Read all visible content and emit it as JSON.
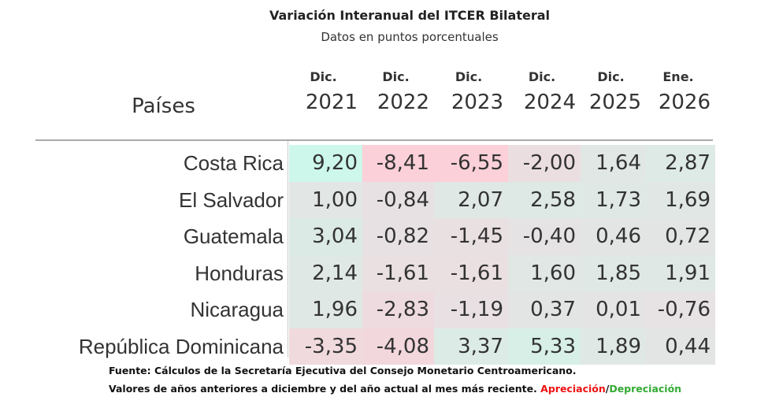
{
  "title": "Variación Interanual del ITCER Bilateral",
  "subtitle": "Datos en puntos porcentuales",
  "chart_data": {
    "type": "heatmap",
    "row_header": "Países",
    "columns": [
      {
        "month": "Dic.",
        "year": "2021"
      },
      {
        "month": "Dic.",
        "year": "2022"
      },
      {
        "month": "Dic.",
        "year": "2023"
      },
      {
        "month": "Dic.",
        "year": "2024"
      },
      {
        "month": "Dic.",
        "year": "2025"
      },
      {
        "month": "Ene.",
        "year": "2026"
      }
    ],
    "rows": [
      {
        "country": "Costa Rica",
        "values": [
          "9,20",
          "-8,41",
          "-6,55",
          "-2,00",
          "1,64",
          "2,87"
        ]
      },
      {
        "country": "El Salvador",
        "values": [
          "1,00",
          "-0,84",
          "2,07",
          "2,58",
          "1,73",
          "1,69"
        ]
      },
      {
        "country": "Guatemala",
        "values": [
          "3,04",
          "-0,82",
          "-1,45",
          "-0,40",
          "0,46",
          "0,72"
        ]
      },
      {
        "country": "Honduras",
        "values": [
          "2,14",
          "-1,61",
          "-1,61",
          "1,60",
          "1,85",
          "1,91"
        ]
      },
      {
        "country": "Nicaragua",
        "values": [
          "1,96",
          "-2,83",
          "-1,19",
          "0,37",
          "0,01",
          "-0,76"
        ]
      },
      {
        "country": "República Dominicana",
        "values": [
          "-3,35",
          "-4,08",
          "3,37",
          "5,33",
          "1,89",
          "0,44"
        ]
      }
    ],
    "color_scale": {
      "positive": "#cdf7ea",
      "neutral": "#e4e4e4",
      "negative": "#fbd0d9"
    }
  },
  "footer": {
    "source": "Fuente: Cálculos de la Secretaría Ejecutiva del Consejo Monetario Centroamericano.",
    "note": "Valores de años anteriores a diciembre y del año actual al mes más reciente.",
    "appreciation": "Apreciación",
    "separator": "/",
    "depreciation": "Depreciación"
  }
}
